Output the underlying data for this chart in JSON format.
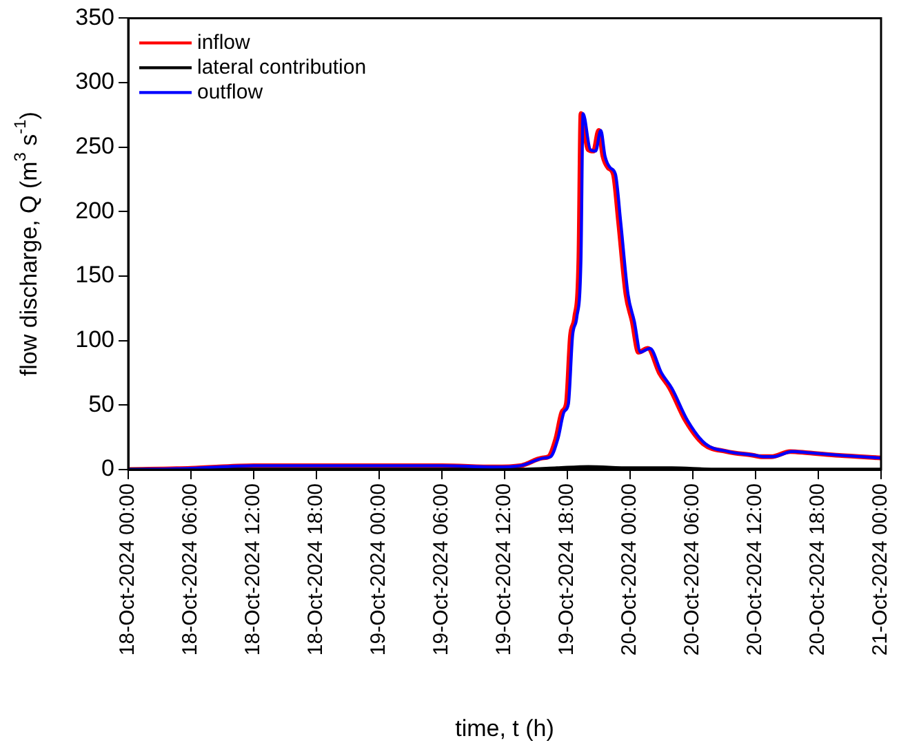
{
  "chart_data": {
    "type": "line",
    "xlabel": "time, t (h)",
    "ylabel": "flow discharge, Q (m$^{3}$ s$^{-1}$)",
    "xlim": [
      "2024-10-18T00:00",
      "2024-10-21T00:00"
    ],
    "xticks": [
      {
        "value": "2024-10-18T00:00",
        "label": "18-Oct-2024 00:00"
      },
      {
        "value": "2024-10-18T06:00",
        "label": "18-Oct-2024 06:00"
      },
      {
        "value": "2024-10-18T12:00",
        "label": "18-Oct-2024 12:00"
      },
      {
        "value": "2024-10-18T18:00",
        "label": "18-Oct-2024 18:00"
      },
      {
        "value": "2024-10-19T00:00",
        "label": "19-Oct-2024 00:00"
      },
      {
        "value": "2024-10-19T06:00",
        "label": "19-Oct-2024 06:00"
      },
      {
        "value": "2024-10-19T12:00",
        "label": "19-Oct-2024 12:00"
      },
      {
        "value": "2024-10-19T18:00",
        "label": "19-Oct-2024 18:00"
      },
      {
        "value": "2024-10-20T00:00",
        "label": "20-Oct-2024 00:00"
      },
      {
        "value": "2024-10-20T06:00",
        "label": "20-Oct-2024 06:00"
      },
      {
        "value": "2024-10-20T12:00",
        "label": "20-Oct-2024 12:00"
      },
      {
        "value": "2024-10-20T18:00",
        "label": "20-Oct-2024 18:00"
      },
      {
        "value": "2024-10-21T00:00",
        "label": "21-Oct-2024 00:00"
      }
    ],
    "ylim": [
      0,
      350
    ],
    "yticks": [
      0,
      50,
      100,
      150,
      200,
      250,
      300,
      350
    ],
    "grid": false,
    "legend": "top left",
    "marker": "none",
    "line_style": "solid",
    "series": [
      {
        "name": "inflow",
        "color": "#ff0000",
        "x": [
          "2024-10-18T00:00",
          "2024-10-18T06:00",
          "2024-10-18T12:00",
          "2024-10-19T00:00",
          "2024-10-19T06:00",
          "2024-10-19T11:00",
          "2024-10-19T13:30",
          "2024-10-19T15:36",
          "2024-10-19T16:12",
          "2024-10-19T16:54",
          "2024-10-19T17:30",
          "2024-10-19T17:54",
          "2024-10-19T18:18",
          "2024-10-19T18:42",
          "2024-10-19T19:06",
          "2024-10-19T19:18",
          "2024-10-19T20:00",
          "2024-10-19T20:30",
          "2024-10-19T21:00",
          "2024-10-19T21:24",
          "2024-10-19T21:54",
          "2024-10-19T22:24",
          "2024-10-19T22:54",
          "2024-10-19T23:36",
          "2024-10-20T00:12",
          "2024-10-20T00:48",
          "2024-10-20T01:42",
          "2024-10-20T02:48",
          "2024-10-20T03:48",
          "2024-10-20T05:18",
          "2024-10-20T07:00",
          "2024-10-20T09:12",
          "2024-10-20T11:48",
          "2024-10-20T12:30",
          "2024-10-20T13:30",
          "2024-10-20T15:18",
          "2024-10-20T17:00",
          "2024-10-20T20:00",
          "2024-10-21T00:00"
        ],
        "values": [
          0,
          1,
          3,
          3,
          3,
          2,
          3,
          9,
          10,
          24,
          45,
          51,
          104,
          118,
          163,
          276,
          248,
          247,
          263,
          243,
          234,
          229,
          192,
          136,
          115,
          91,
          94,
          75,
          63,
          38,
          20,
          14,
          11,
          10,
          10,
          14,
          13,
          11,
          9
        ]
      },
      {
        "name": "lateral contribution",
        "color": "#000000",
        "x": [
          "2024-10-18T00:00",
          "2024-10-19T14:00",
          "2024-10-19T17:00",
          "2024-10-19T20:00",
          "2024-10-20T00:00",
          "2024-10-20T04:00",
          "2024-10-20T08:00",
          "2024-10-21T00:00"
        ],
        "values": [
          0,
          0,
          1,
          2,
          1,
          1,
          0,
          0
        ]
      },
      {
        "name": "outflow",
        "color": "#0000ff",
        "x": [
          "2024-10-18T00:00",
          "2024-10-18T06:00",
          "2024-10-18T12:00",
          "2024-10-19T00:00",
          "2024-10-19T06:00",
          "2024-10-19T11:00",
          "2024-10-19T13:30",
          "2024-10-19T15:48",
          "2024-10-19T16:24",
          "2024-10-19T17:06",
          "2024-10-19T17:42",
          "2024-10-19T18:06",
          "2024-10-19T18:30",
          "2024-10-19T18:54",
          "2024-10-19T19:18",
          "2024-10-19T19:30",
          "2024-10-19T20:12",
          "2024-10-19T20:42",
          "2024-10-19T21:12",
          "2024-10-19T21:36",
          "2024-10-19T22:06",
          "2024-10-19T22:36",
          "2024-10-19T23:06",
          "2024-10-19T23:48",
          "2024-10-20T00:24",
          "2024-10-20T01:00",
          "2024-10-20T01:54",
          "2024-10-20T03:00",
          "2024-10-20T04:00",
          "2024-10-20T05:30",
          "2024-10-20T07:12",
          "2024-10-20T09:24",
          "2024-10-20T12:00",
          "2024-10-20T12:42",
          "2024-10-20T13:42",
          "2024-10-20T15:30",
          "2024-10-20T17:12",
          "2024-10-20T20:12",
          "2024-10-21T00:00"
        ],
        "values": [
          0,
          1,
          3,
          3,
          3,
          2,
          3,
          9,
          10,
          24,
          45,
          51,
          104,
          118,
          163,
          276,
          248,
          247,
          263,
          243,
          234,
          229,
          192,
          136,
          115,
          91,
          94,
          75,
          63,
          38,
          20,
          14,
          11,
          10,
          10,
          14,
          13,
          11,
          9
        ]
      }
    ]
  }
}
